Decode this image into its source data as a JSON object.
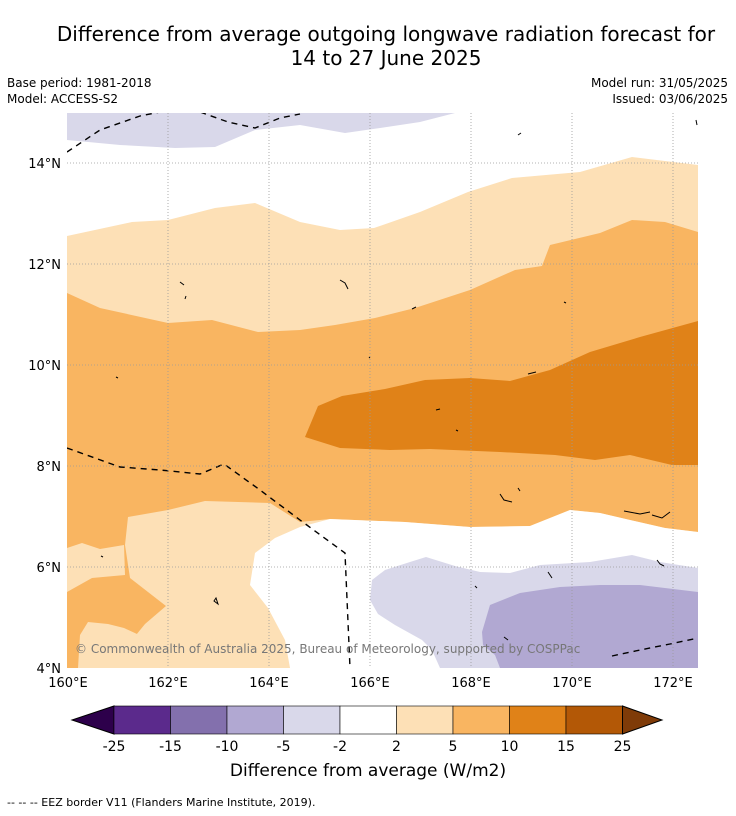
{
  "title_line1": "Difference from average outgoing longwave radiation forecast for",
  "title_line2": "14 to 27 June 2025",
  "base_period": "Base period: 1981-2018",
  "model": "Model: ACCESS-S2",
  "model_run": "Model run: 31/05/2025",
  "issued": "Issued: 03/06/2025",
  "copyright": "© Commonwealth of Australia 2025, Bureau of Meteorology, supported by COSPPac",
  "map": {
    "lat_ticks": [
      "14°N",
      "12°N",
      "10°N",
      "8°N",
      "6°N",
      "4°N"
    ],
    "lon_ticks": [
      "160°E",
      "162°E",
      "164°E",
      "166°E",
      "168°E",
      "170°E",
      "172°E"
    ]
  },
  "colorbar": {
    "labels": [
      "-25",
      "-15",
      "-10",
      "-5",
      "-2",
      "2",
      "5",
      "10",
      "15",
      "25"
    ],
    "colors": [
      "#5b2a8c",
      "#8370ad",
      "#b1a8d2",
      "#d9d8ea",
      "#ffffff",
      "#fde0b6",
      "#f9b561",
      "#e08218",
      "#b35806"
    ],
    "under_color": "#2d004b",
    "over_color": "#7f3b08",
    "title": "Difference from average (W/m2)"
  },
  "footer": "-- -- -- EEZ border V11 (Flanders Marine Institute, 2019)."
}
